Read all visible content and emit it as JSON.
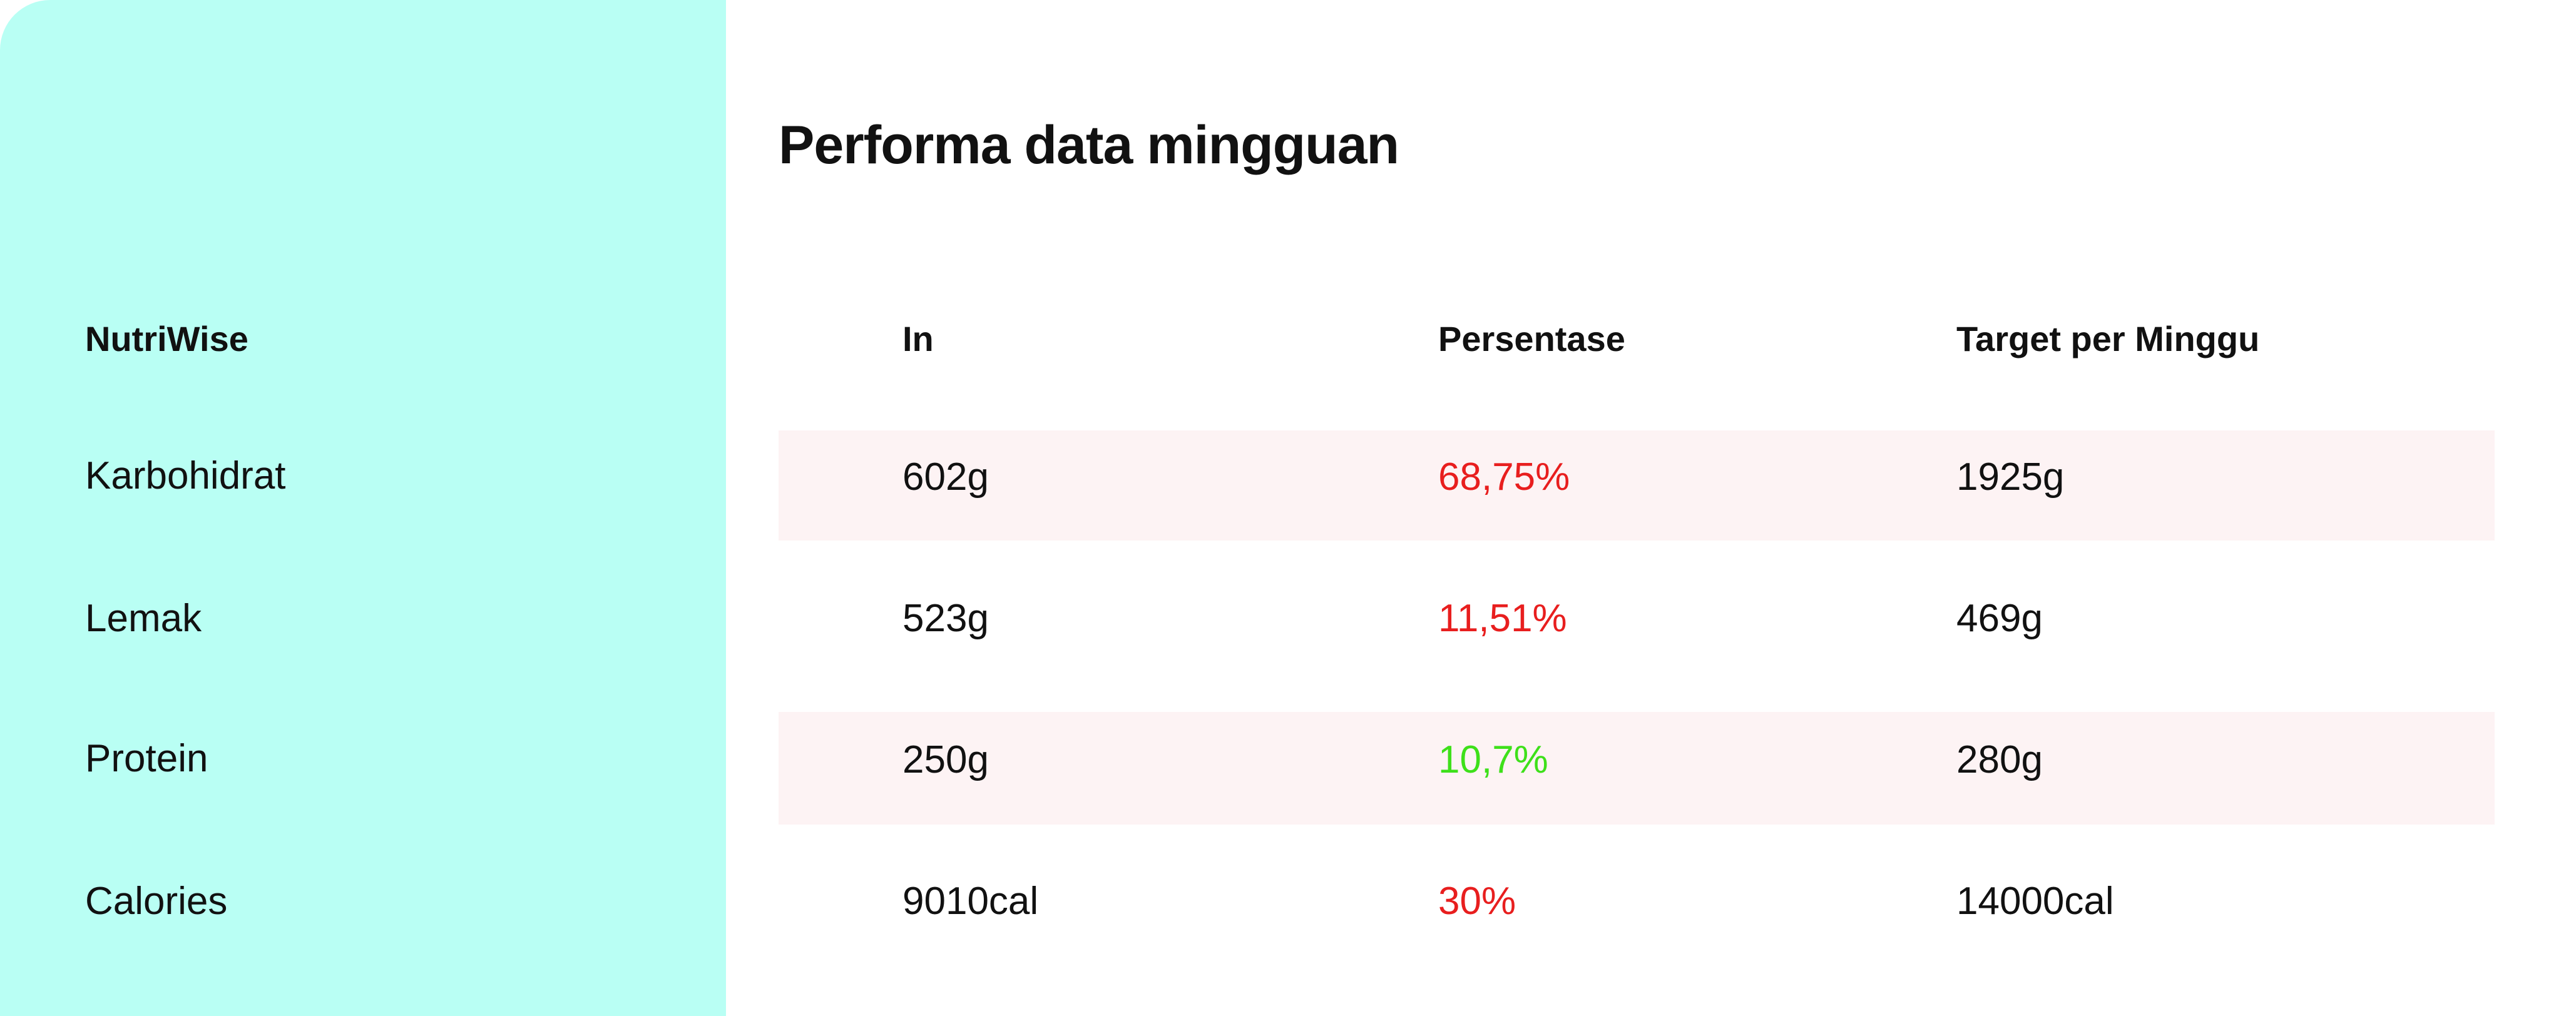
{
  "title": "Performa data mingguan",
  "sidebar": {
    "header": "NutriWise",
    "items": [
      {
        "label": "Karbohidrat"
      },
      {
        "label": "Lemak"
      },
      {
        "label": "Protein"
      },
      {
        "label": "Calories"
      }
    ]
  },
  "table": {
    "columns": [
      "In",
      "Persentase",
      "Target per Minggu"
    ],
    "rows": [
      {
        "in": "602g",
        "pct": "68,75%",
        "target": "1925g",
        "pct_color": "#e81e1e",
        "shaded": true
      },
      {
        "in": "523g",
        "pct": "11,51%",
        "target": "469g",
        "pct_color": "#e81e1e",
        "shaded": false
      },
      {
        "in": "250g",
        "pct": "10,7%",
        "target": "280g",
        "pct_color": "#3ee01a",
        "shaded": true
      },
      {
        "in": "9010cal",
        "pct": "30%",
        "target": "14000cal",
        "pct_color": "#e81e1e",
        "shaded": false
      }
    ]
  },
  "colors": {
    "sidebar_bg": "#b9fff4",
    "row_band": "#fdf3f4",
    "negative": "#e81e1e",
    "positive": "#3ee01a"
  }
}
